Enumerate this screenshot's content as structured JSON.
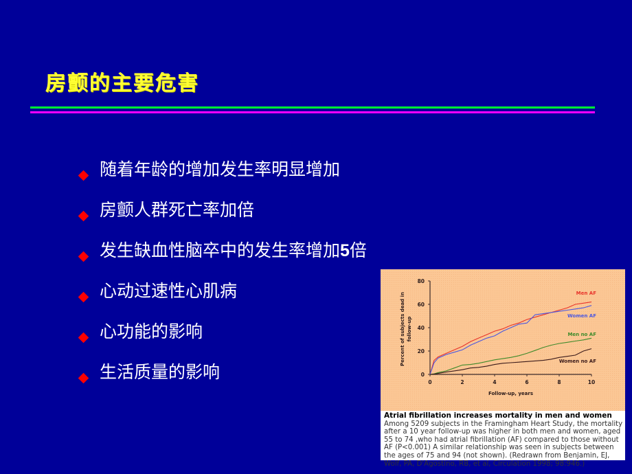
{
  "slide": {
    "title": "房颤的主要危害",
    "colors": {
      "background": "#000099",
      "title": "#ffff33",
      "rule_top": "#00ff33",
      "rule_bottom": "#ff00ff",
      "bullet": "#ff0000",
      "body_text": "#ffffff"
    },
    "bullets": [
      {
        "icon": "red-diamond",
        "text": "随着年龄的增加发生率明显增加"
      },
      {
        "icon": "red-diamond",
        "text": "房颤人群死亡率加倍"
      },
      {
        "icon": "red-diamond",
        "text_before": "发生缺血性脑卒中的发生率增加",
        "number": "5",
        "text_after": "倍"
      },
      {
        "icon": "red-diamond",
        "text": "心动过速性心肌病"
      },
      {
        "icon": "red-diamond",
        "text": "心功能的影响"
      },
      {
        "icon": "red-diamond",
        "text": "生活质量的影响"
      }
    ]
  },
  "figure": {
    "caption_title": "Atrial fibrillation increases mortality in men and women",
    "caption_body": "Among 5209 subjects in the Framingham Heart Study, the mortality after a 10 year follow-up was higher in both men and women, aged 55 to 74 ,who had atrial fibrillation (AF) compared to those without AF (P<0.001) A similar relationship was seen in subjects between the ages of 75 and 94 (not shown). (Redrawn from Benjamin, EJ, Wolf, PA, D'Agostino, RB, et al, Circulation 1998; 98:946.)"
  },
  "chart_data": {
    "type": "line",
    "title": "",
    "xlabel": "Follow-up, years",
    "ylabel": "Percent of subjects dead in follow-up",
    "xlim": [
      0,
      10
    ],
    "ylim": [
      0,
      80
    ],
    "xticks": [
      "0",
      "2",
      "4",
      "6",
      "8",
      "10"
    ],
    "yticks": [
      "0",
      "20",
      "40",
      "60",
      "80"
    ],
    "grid": false,
    "legend_position": "inline labels at right end of lines",
    "background": "#fbc795",
    "x": [
      0,
      0.25,
      0.5,
      1,
      1.5,
      2,
      2.5,
      3,
      3.5,
      4,
      4.5,
      5,
      5.5,
      6,
      6.5,
      7,
      7.5,
      8,
      8.5,
      9,
      9.5,
      10
    ],
    "series": [
      {
        "name": "Men AF",
        "color": "#e8332a",
        "values": [
          0,
          12,
          15,
          18,
          21,
          24,
          28,
          31,
          34,
          37,
          39,
          42,
          44,
          47,
          49,
          51,
          53,
          55,
          57,
          60,
          61,
          62
        ]
      },
      {
        "name": "Women AF",
        "color": "#4a57e0",
        "values": [
          0,
          10,
          14,
          17,
          19,
          21,
          25,
          28,
          31,
          33,
          37,
          40,
          43,
          44,
          51,
          52,
          53,
          54,
          55,
          56,
          57,
          59
        ]
      },
      {
        "name": "Men no AF",
        "color": "#3d8a2a",
        "values": [
          0,
          0.5,
          1.5,
          3,
          5.5,
          8,
          8.5,
          9.5,
          11,
          12.5,
          13.5,
          14.5,
          16,
          18,
          20.5,
          23,
          25,
          26.5,
          27.5,
          28.5,
          29.5,
          31
        ]
      },
      {
        "name": "Women no AF",
        "color": "#3a1a1a",
        "values": [
          0,
          0.3,
          0.8,
          2,
          3,
          4,
          5.5,
          6,
          7,
          8.5,
          9.5,
          10,
          10.5,
          11,
          11.5,
          12,
          13,
          14.5,
          15.5,
          16.5,
          20,
          22
        ]
      }
    ]
  }
}
